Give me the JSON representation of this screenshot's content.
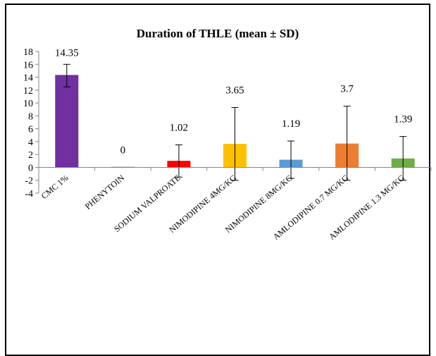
{
  "chart_data": {
    "type": "bar",
    "title": "Duration of THLE (mean ± SD)",
    "xlabel": "",
    "ylabel": "",
    "ylim": [
      -4,
      18
    ],
    "yticks": [
      -4,
      -2,
      0,
      2,
      4,
      6,
      8,
      10,
      12,
      14,
      16,
      18
    ],
    "grid": false,
    "legend": "none",
    "categories": [
      "CMC 1%",
      "PHENYTOIN",
      "SODIUM VALPROATE",
      "NIMODIPINE 4MG/KG",
      "NIMODIPINE 8MG/KG",
      "AMLODIPINE 0.7 MG/KG",
      "AMLODIPINE 1.3 MG/KG"
    ],
    "values": [
      14.35,
      0,
      1.02,
      3.65,
      1.19,
      3.7,
      1.39
    ],
    "data_labels": [
      "14.35",
      "0",
      "1.02",
      "3.65",
      "1.19",
      "3.7",
      "1.39"
    ],
    "error_low": [
      12.5,
      0,
      -1.5,
      -2.0,
      -1.7,
      -2.0,
      -2.0
    ],
    "error_high": [
      16.0,
      0,
      3.5,
      9.3,
      4.1,
      9.5,
      4.8
    ],
    "colors": [
      "#7030a0",
      "#a6a6a6",
      "#ff0000",
      "#ffc000",
      "#5b9bd5",
      "#ed7d31",
      "#70ad47"
    ]
  }
}
